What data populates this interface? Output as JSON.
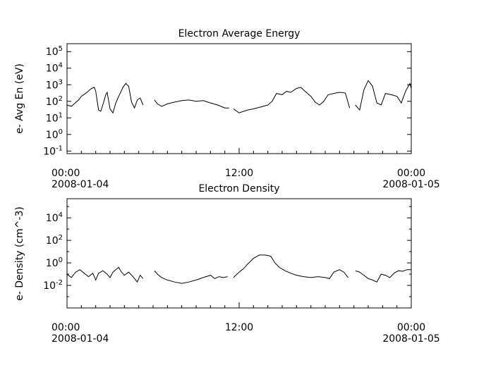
{
  "chart_data": [
    {
      "type": "line",
      "title": "Electron Average Energy",
      "ylabel": "e- Avg En (eV)",
      "yscale": "log",
      "ylim": [
        0.07,
        300000
      ],
      "xlim": [
        0,
        24
      ],
      "ytick_exponents": [
        -1,
        0,
        1,
        2,
        3,
        4,
        5
      ],
      "xticks": [
        {
          "hour": 0,
          "time": "00:00",
          "date": "2008-01-04"
        },
        {
          "hour": 12,
          "time": "12:00",
          "date": ""
        },
        {
          "hour": 24,
          "time": "00:00",
          "date": "2008-01-05"
        }
      ],
      "series": [
        {
          "segments": [
            [
              [
                0,
                60
              ],
              [
                0.3,
                50
              ],
              [
                0.5,
                70
              ],
              [
                0.8,
                120
              ],
              [
                1.0,
                200
              ],
              [
                1.3,
                300
              ],
              [
                1.5,
                420
              ],
              [
                1.7,
                600
              ],
              [
                1.9,
                700
              ],
              [
                2.0,
                400
              ],
              [
                2.2,
                30
              ],
              [
                2.35,
                25
              ],
              [
                2.5,
                60
              ],
              [
                2.7,
                250
              ],
              [
                2.8,
                350
              ],
              [
                3.0,
                35
              ],
              [
                3.2,
                20
              ],
              [
                3.4,
                80
              ],
              [
                3.7,
                300
              ],
              [
                3.9,
                700
              ],
              [
                4.1,
                1200
              ],
              [
                4.3,
                800
              ],
              [
                4.5,
                90
              ],
              [
                4.7,
                40
              ],
              [
                4.9,
                120
              ],
              [
                5.1,
                160
              ],
              [
                5.3,
                60
              ]
            ],
            [
              [
                6.1,
                120
              ],
              [
                6.3,
                70
              ],
              [
                6.6,
                50
              ],
              [
                7.0,
                70
              ],
              [
                7.5,
                90
              ],
              [
                8.0,
                110
              ],
              [
                8.5,
                120
              ],
              [
                9.0,
                100
              ],
              [
                9.5,
                110
              ],
              [
                10.0,
                80
              ],
              [
                10.5,
                60
              ],
              [
                11.0,
                40
              ],
              [
                11.3,
                40
              ]
            ],
            [
              [
                11.6,
                35
              ],
              [
                12.0,
                20
              ],
              [
                12.3,
                25
              ],
              [
                12.6,
                30
              ],
              [
                13.0,
                35
              ],
              [
                13.5,
                45
              ],
              [
                14.0,
                60
              ],
              [
                14.3,
                100
              ],
              [
                14.6,
                300
              ],
              [
                15.0,
                250
              ],
              [
                15.3,
                400
              ],
              [
                15.6,
                350
              ],
              [
                16.0,
                600
              ],
              [
                16.3,
                700
              ],
              [
                16.6,
                400
              ],
              [
                17.0,
                200
              ],
              [
                17.3,
                90
              ],
              [
                17.6,
                60
              ],
              [
                17.9,
                100
              ],
              [
                18.2,
                250
              ],
              [
                18.6,
                300
              ],
              [
                19.0,
                350
              ],
              [
                19.4,
                320
              ],
              [
                19.7,
                40
              ]
            ],
            [
              [
                20.1,
                60
              ],
              [
                20.4,
                30
              ],
              [
                20.7,
                500
              ],
              [
                21.0,
                1800
              ],
              [
                21.3,
                800
              ],
              [
                21.6,
                80
              ],
              [
                21.9,
                60
              ],
              [
                22.2,
                300
              ],
              [
                22.6,
                250
              ],
              [
                23.0,
                200
              ],
              [
                23.3,
                80
              ],
              [
                23.6,
                400
              ],
              [
                23.9,
                1200
              ],
              [
                24.0,
                600
              ]
            ]
          ]
        }
      ]
    },
    {
      "type": "line",
      "title": "Electron Density",
      "ylabel": "e- Density (cm^-3)",
      "yscale": "log",
      "ylim": [
        0.0001,
        500000
      ],
      "xlim": [
        0,
        24
      ],
      "ytick_exponents": [
        -2,
        0,
        2,
        4
      ],
      "xticks": [
        {
          "hour": 0,
          "time": "00:00",
          "date": "2008-01-04"
        },
        {
          "hour": 12,
          "time": "12:00",
          "date": ""
        },
        {
          "hour": 24,
          "time": "00:00",
          "date": "2008-01-05"
        }
      ],
      "series": [
        {
          "segments": [
            [
              [
                0,
                0.1
              ],
              [
                0.3,
                0.05
              ],
              [
                0.6,
                0.15
              ],
              [
                0.9,
                0.25
              ],
              [
                1.2,
                0.12
              ],
              [
                1.5,
                0.06
              ],
              [
                1.8,
                0.12
              ],
              [
                2.0,
                0.03
              ],
              [
                2.2,
                0.12
              ],
              [
                2.5,
                0.2
              ],
              [
                2.8,
                0.1
              ],
              [
                3.0,
                0.05
              ],
              [
                3.2,
                0.15
              ],
              [
                3.4,
                0.25
              ],
              [
                3.6,
                0.4
              ],
              [
                3.8,
                0.15
              ],
              [
                4.0,
                0.08
              ],
              [
                4.3,
                0.15
              ],
              [
                4.6,
                0.06
              ],
              [
                4.9,
                0.02
              ],
              [
                5.1,
                0.08
              ],
              [
                5.3,
                0.04
              ]
            ],
            [
              [
                6.1,
                0.2
              ],
              [
                6.3,
                0.1
              ],
              [
                6.6,
                0.05
              ],
              [
                7.0,
                0.03
              ],
              [
                7.5,
                0.02
              ],
              [
                8.0,
                0.015
              ],
              [
                8.5,
                0.02
              ],
              [
                9.0,
                0.03
              ],
              [
                9.5,
                0.05
              ],
              [
                10.0,
                0.08
              ],
              [
                10.3,
                0.04
              ],
              [
                10.6,
                0.06
              ],
              [
                10.9,
                0.05
              ],
              [
                11.2,
                0.06
              ]
            ],
            [
              [
                11.6,
                0.05
              ],
              [
                12.0,
                0.15
              ],
              [
                12.3,
                0.3
              ],
              [
                12.6,
                0.8
              ],
              [
                13.0,
                2.5
              ],
              [
                13.4,
                5
              ],
              [
                13.8,
                5
              ],
              [
                14.2,
                4
              ],
              [
                14.5,
                1
              ],
              [
                14.8,
                0.4
              ],
              [
                15.2,
                0.2
              ],
              [
                15.6,
                0.12
              ],
              [
                16.0,
                0.08
              ],
              [
                16.5,
                0.06
              ],
              [
                17.0,
                0.05
              ],
              [
                17.5,
                0.06
              ],
              [
                18.0,
                0.05
              ],
              [
                18.3,
                0.04
              ],
              [
                18.6,
                0.15
              ],
              [
                19.0,
                0.25
              ],
              [
                19.3,
                0.15
              ],
              [
                19.6,
                0.05
              ]
            ],
            [
              [
                20.1,
                0.2
              ],
              [
                20.4,
                0.15
              ],
              [
                20.7,
                0.08
              ],
              [
                21.0,
                0.04
              ],
              [
                21.3,
                0.03
              ],
              [
                21.6,
                0.02
              ],
              [
                21.9,
                0.1
              ],
              [
                22.2,
                0.08
              ],
              [
                22.5,
                0.05
              ],
              [
                22.8,
                0.12
              ],
              [
                23.1,
                0.2
              ],
              [
                23.4,
                0.18
              ],
              [
                23.7,
                0.25
              ],
              [
                24.0,
                0.25
              ]
            ]
          ]
        }
      ]
    }
  ]
}
